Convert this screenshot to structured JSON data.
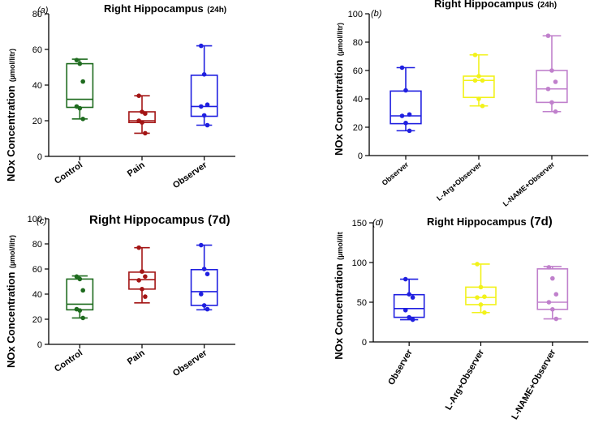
{
  "chart_data": [
    {
      "panel": "(a)",
      "type": "box",
      "title": "Right Hippocampus",
      "title_suffix": "(24h)",
      "ylabel": "NOx Concentration",
      "yunit": "(µmol/litr)",
      "ylim": [
        0,
        80
      ],
      "yticks": [
        0,
        20,
        40,
        60,
        80
      ],
      "categories": [
        "Control",
        "Pain",
        "Observer"
      ],
      "colors": [
        "#1e6b1e",
        "#a31515",
        "#1f1fe0"
      ],
      "boxes": [
        {
          "min": 21,
          "q1": 27.5,
          "median": 32,
          "q3": 52,
          "max": 54.5
        },
        {
          "min": 13,
          "q1": 19,
          "median": 20,
          "q3": 25,
          "max": 34
        },
        {
          "min": 17.5,
          "q1": 22.5,
          "median": 28,
          "q3": 45.5,
          "max": 62
        }
      ],
      "points": [
        [
          54,
          52,
          42,
          28,
          27,
          21
        ],
        [
          34,
          25,
          24,
          20,
          19,
          13
        ],
        [
          62,
          46,
          29,
          28,
          23,
          17.5
        ]
      ]
    },
    {
      "panel": "(b)",
      "type": "box",
      "title": "Right Hippocampus",
      "title_suffix": "(24h)",
      "ylabel": "NOx Concentration",
      "yunit": "(µmol/litr)",
      "ylim": [
        0,
        100
      ],
      "yticks": [
        0,
        20,
        40,
        60,
        80,
        100
      ],
      "categories": [
        "Observer",
        "L-Arg+Observer",
        "L-NAME+Observer"
      ],
      "colors": [
        "#1f1fe0",
        "#f2f21a",
        "#c080cc"
      ],
      "boxes": [
        {
          "min": 17.5,
          "q1": 22.5,
          "median": 28,
          "q3": 45.5,
          "max": 62
        },
        {
          "min": 35,
          "q1": 41,
          "median": 53,
          "q3": 56,
          "max": 71
        },
        {
          "min": 31,
          "q1": 37.5,
          "median": 47,
          "q3": 60,
          "max": 84.5
        }
      ],
      "points": [
        [
          62,
          46,
          29,
          28,
          23,
          17.5
        ],
        [
          71,
          56,
          53,
          53,
          40,
          35
        ],
        [
          84.5,
          60,
          52,
          47,
          37.5,
          31
        ]
      ]
    },
    {
      "panel": "(c)",
      "type": "box",
      "title": "Right Hippocampus",
      "title_suffix": "(7d)",
      "ylabel": "NOx Concentration",
      "yunit": "(µmol/litr)",
      "ylim": [
        0,
        100
      ],
      "yticks": [
        0,
        20,
        40,
        60,
        80,
        100
      ],
      "categories": [
        "Control",
        "Pain",
        "Observer"
      ],
      "colors": [
        "#1e6b1e",
        "#a31515",
        "#1f1fe0"
      ],
      "boxes": [
        {
          "min": 21,
          "q1": 27.5,
          "median": 32,
          "q3": 52,
          "max": 54.5
        },
        {
          "min": 33,
          "q1": 44,
          "median": 51.5,
          "q3": 57.5,
          "max": 77
        },
        {
          "min": 27.5,
          "q1": 31,
          "median": 42,
          "q3": 59.5,
          "max": 79
        }
      ],
      "points": [
        [
          54,
          52,
          43,
          28,
          27,
          21
        ],
        [
          77,
          58,
          54,
          51,
          44,
          38
        ],
        [
          79,
          60,
          56,
          40,
          31,
          28
        ]
      ]
    },
    {
      "panel": "(d)",
      "type": "box",
      "title": "Right Hippocampus",
      "title_suffix": "(7d)",
      "ylabel": "NOx Concentration",
      "yunit": "(µmol/lit",
      "ylim": [
        0,
        150
      ],
      "yticks": [
        0,
        50,
        100,
        150
      ],
      "categories": [
        "Observer",
        "L-Arg+Observer",
        "L-NAME+Observer"
      ],
      "colors": [
        "#1f1fe0",
        "#f2f21a",
        "#c080cc"
      ],
      "boxes": [
        {
          "min": 28,
          "q1": 31,
          "median": 42,
          "q3": 59.5,
          "max": 79
        },
        {
          "min": 37,
          "q1": 47,
          "median": 56,
          "q3": 69,
          "max": 98
        },
        {
          "min": 29,
          "q1": 41,
          "median": 50,
          "q3": 92,
          "max": 95
        }
      ],
      "points": [
        [
          79,
          60,
          56,
          40,
          31,
          28
        ],
        [
          98,
          69,
          57,
          56,
          47,
          37
        ],
        [
          94,
          80,
          60,
          50,
          41,
          29
        ]
      ]
    }
  ]
}
